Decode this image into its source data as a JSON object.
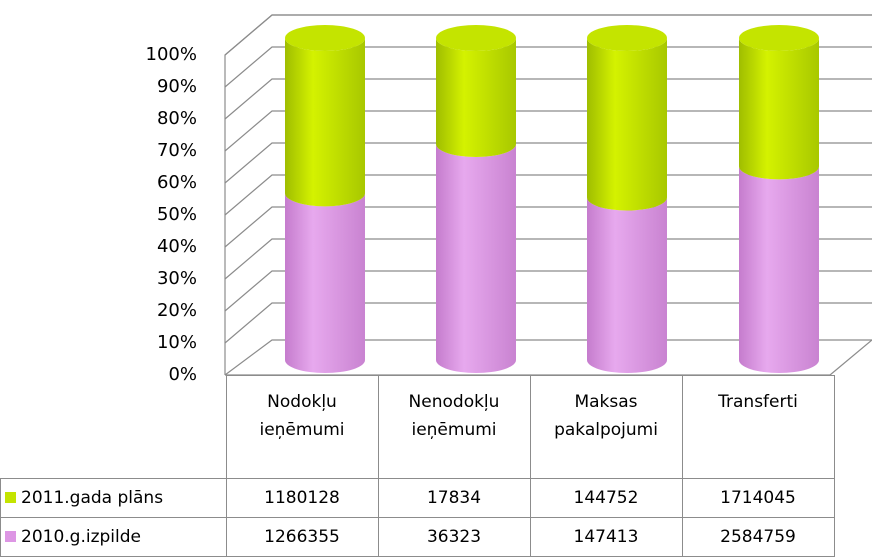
{
  "chart_data": {
    "type": "bar",
    "stacking": "percent",
    "categories": [
      "Nodokļu ieņēmumi",
      "Nenodokļu ieņēmumi",
      "Maksas pakalpojumi",
      "Transferti"
    ],
    "series": [
      {
        "name": "2011.gada plāns",
        "color": "#c4e400",
        "values": [
          1180128,
          17834,
          144752,
          1714045
        ]
      },
      {
        "name": "2010.g.izpilde",
        "color": "#dd96e4",
        "values": [
          1266355,
          36323,
          147413,
          2584759
        ]
      }
    ],
    "ylim": [
      0,
      100
    ],
    "yticks": [
      {
        "value": 0,
        "label": "0%"
      },
      {
        "value": 10,
        "label": "10%"
      },
      {
        "value": 20,
        "label": "20%"
      },
      {
        "value": 30,
        "label": "30%"
      },
      {
        "value": 40,
        "label": "40%"
      },
      {
        "value": 50,
        "label": "50%"
      },
      {
        "value": 60,
        "label": "60%"
      },
      {
        "value": 70,
        "label": "70%"
      },
      {
        "value": 80,
        "label": "80%"
      },
      {
        "value": 90,
        "label": "90%"
      },
      {
        "value": 100,
        "label": "100%"
      }
    ],
    "grid": true,
    "data_table": true
  }
}
